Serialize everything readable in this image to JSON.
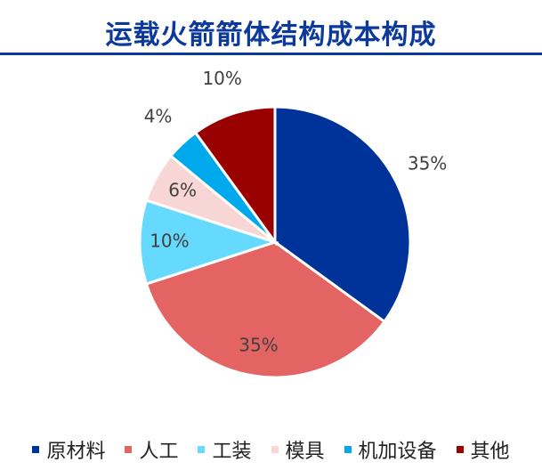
{
  "title": "运载火箭箭体结构成本构成",
  "chart_data": {
    "type": "pie",
    "title": "运载火箭箭体结构成本构成",
    "slices": [
      {
        "label": "原材料",
        "value": 35,
        "display": "35%",
        "color": "#003399"
      },
      {
        "label": "人工",
        "value": 35,
        "display": "35%",
        "color": "#e46464"
      },
      {
        "label": "工装",
        "value": 10,
        "display": "10%",
        "color": "#66d9ff"
      },
      {
        "label": "模具",
        "value": 6,
        "display": "6%",
        "color": "#f9d6d6"
      },
      {
        "label": "机加设备",
        "value": 4,
        "display": "4%",
        "color": "#00a8ec"
      },
      {
        "label": "其他",
        "value": 10,
        "display": "10%",
        "color": "#990000"
      }
    ],
    "legend_position": "bottom",
    "start_direction": "12 o'clock, clockwise"
  }
}
